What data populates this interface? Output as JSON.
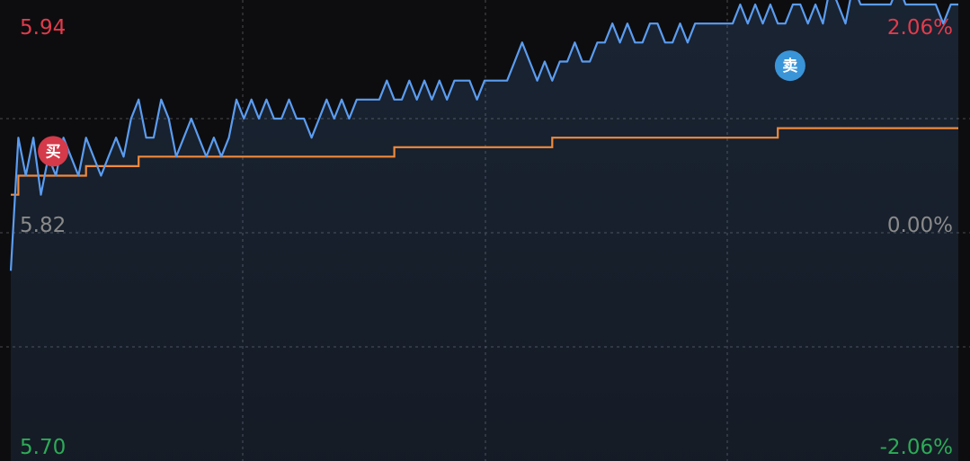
{
  "chart_data": {
    "type": "line",
    "price_axis": {
      "top_label": "5.94",
      "mid_label": "5.82",
      "bottom_label": "5.70",
      "range": [
        5.7,
        5.94
      ]
    },
    "pct_axis": {
      "top_label": "2.06%",
      "mid_label": "0.00%",
      "bottom_label": "-2.06%"
    },
    "grid": true,
    "series": [
      {
        "key": "price",
        "color": "#5b9cf0",
        "values": [
          5.8,
          5.87,
          5.85,
          5.87,
          5.84,
          5.86,
          5.85,
          5.87,
          5.86,
          5.85,
          5.87,
          5.86,
          5.85,
          5.86,
          5.87,
          5.86,
          5.88,
          5.89,
          5.87,
          5.87,
          5.89,
          5.88,
          5.86,
          5.87,
          5.88,
          5.87,
          5.86,
          5.87,
          5.86,
          5.87,
          5.89,
          5.88,
          5.89,
          5.88,
          5.89,
          5.88,
          5.88,
          5.89,
          5.88,
          5.88,
          5.87,
          5.88,
          5.89,
          5.88,
          5.89,
          5.88,
          5.89,
          5.89,
          5.89,
          5.89,
          5.9,
          5.89,
          5.89,
          5.9,
          5.89,
          5.9,
          5.89,
          5.9,
          5.89,
          5.9,
          5.9,
          5.9,
          5.89,
          5.9,
          5.9,
          5.9,
          5.9,
          5.91,
          5.92,
          5.91,
          5.9,
          5.91,
          5.9,
          5.91,
          5.91,
          5.92,
          5.91,
          5.91,
          5.92,
          5.92,
          5.93,
          5.92,
          5.93,
          5.92,
          5.92,
          5.93,
          5.93,
          5.92,
          5.92,
          5.93,
          5.92,
          5.93,
          5.93,
          5.93,
          5.93,
          5.93,
          5.93,
          5.94,
          5.93,
          5.94,
          5.93,
          5.94,
          5.93,
          5.93,
          5.94,
          5.94,
          5.93,
          5.94,
          5.93,
          5.95,
          5.94,
          5.93,
          5.95,
          5.94,
          5.94,
          5.94,
          5.94,
          5.94,
          5.95,
          5.94,
          5.94,
          5.94,
          5.94,
          5.94,
          5.93,
          5.94,
          5.94
        ]
      },
      {
        "key": "average",
        "color": "#f08a3c",
        "values": [
          5.84,
          5.85,
          5.85,
          5.85,
          5.85,
          5.85,
          5.85,
          5.85,
          5.85,
          5.85,
          5.855,
          5.855,
          5.855,
          5.855,
          5.855,
          5.855,
          5.855,
          5.86,
          5.86,
          5.86,
          5.86,
          5.86,
          5.86,
          5.86,
          5.86,
          5.86,
          5.86,
          5.86,
          5.86,
          5.86,
          5.86,
          5.86,
          5.86,
          5.86,
          5.86,
          5.86,
          5.86,
          5.86,
          5.86,
          5.86,
          5.86,
          5.86,
          5.86,
          5.86,
          5.86,
          5.86,
          5.86,
          5.86,
          5.86,
          5.86,
          5.86,
          5.865,
          5.865,
          5.865,
          5.865,
          5.865,
          5.865,
          5.865,
          5.865,
          5.865,
          5.865,
          5.865,
          5.865,
          5.865,
          5.865,
          5.865,
          5.865,
          5.865,
          5.865,
          5.865,
          5.865,
          5.865,
          5.87,
          5.87,
          5.87,
          5.87,
          5.87,
          5.87,
          5.87,
          5.87,
          5.87,
          5.87,
          5.87,
          5.87,
          5.87,
          5.87,
          5.87,
          5.87,
          5.87,
          5.87,
          5.87,
          5.87,
          5.87,
          5.87,
          5.87,
          5.87,
          5.87,
          5.87,
          5.87,
          5.87,
          5.87,
          5.87,
          5.875,
          5.875,
          5.875,
          5.875,
          5.875,
          5.875,
          5.875,
          5.875,
          5.875,
          5.875,
          5.875,
          5.875,
          5.875,
          5.875,
          5.875,
          5.875,
          5.875,
          5.875,
          5.875,
          5.875,
          5.875,
          5.875,
          5.875,
          5.875,
          5.875
        ]
      }
    ],
    "markers": [
      {
        "key": "buy",
        "label": "买",
        "index": 3,
        "value": 5.86,
        "color": "#d43a4a"
      },
      {
        "key": "sell",
        "label": "卖",
        "index": 101,
        "value": 5.905,
        "color": "#3a94d8"
      }
    ],
    "colors": {
      "up": "#e23b4b",
      "down": "#2dab57",
      "neutral": "#8a8a8a",
      "grid": "#4a4a50",
      "fill": "#5b9cf0"
    }
  }
}
